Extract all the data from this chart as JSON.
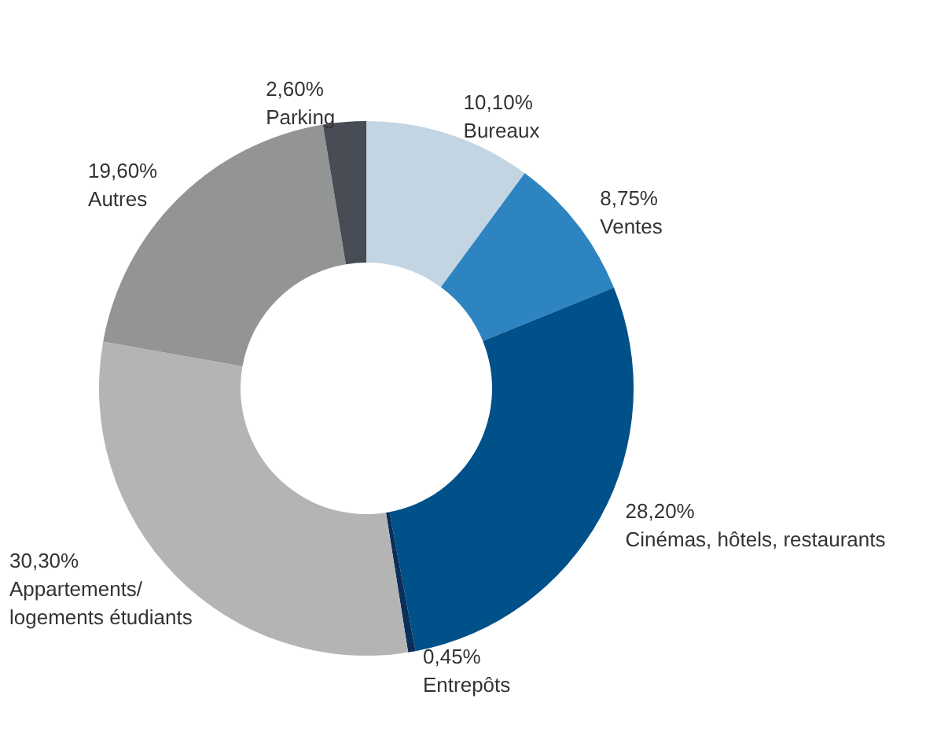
{
  "chart_data": {
    "type": "donut",
    "categories": [
      "Bureaux",
      "Ventes",
      "Cinémas, hôtels, restaurants",
      "Entrepôts",
      "Appartements/\nlogements étudiants",
      "Autres",
      "Parking"
    ],
    "values": [
      10.1,
      8.75,
      28.2,
      0.45,
      30.3,
      19.6,
      2.6
    ],
    "value_labels": [
      "10,10%",
      "8,75%",
      "28,20%",
      "0,45%",
      "30,30%",
      "19,60%",
      "2,60%"
    ],
    "colors": [
      "#c3d5e3",
      "#2e84c0",
      "#00508a",
      "#0a2f5a",
      "#b5b4b5",
      "#939595",
      "#474c55"
    ],
    "legend": false
  }
}
